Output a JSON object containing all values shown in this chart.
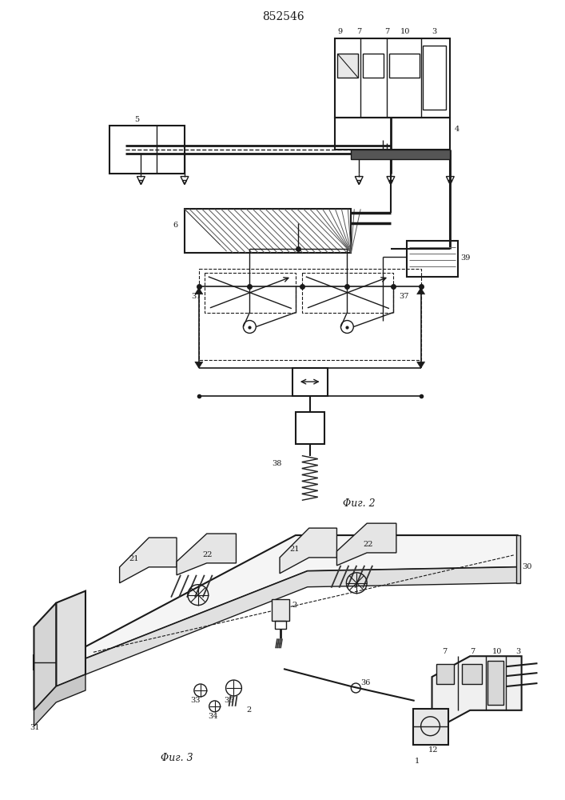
{
  "title": "852546",
  "fig2_label": "Φиг. 2",
  "fig3_label": "Φиг. 3",
  "bg_color": "#ffffff",
  "line_color": "#1a1a1a"
}
